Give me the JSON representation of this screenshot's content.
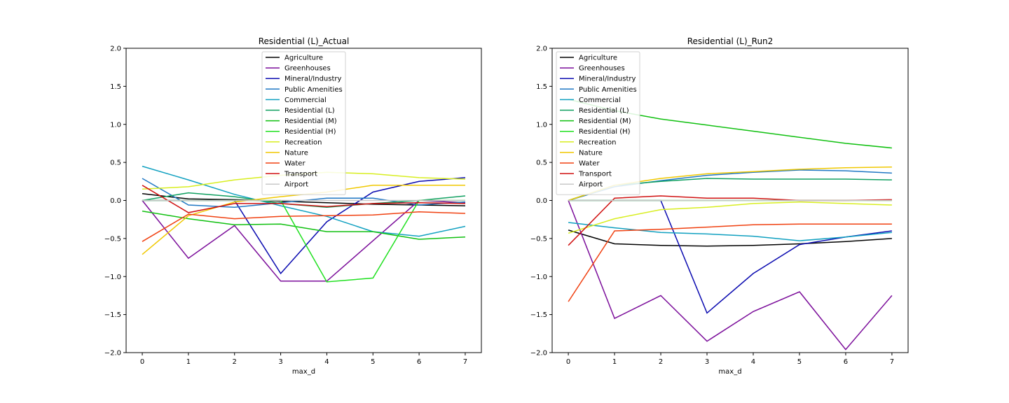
{
  "colors": {
    "Agriculture": "#000000",
    "Greenhouses": "#7b0d9a",
    "Mineral/Industry": "#0a0ab0",
    "Public Amenities": "#1f77c4",
    "Commercial": "#10a0c0",
    "Residential (L)": "#10a060",
    "Residential (M)": "#10c010",
    "Residential (H)": "#20e020",
    "Recreation": "#d8ee20",
    "Nature": "#f0c800",
    "Water": "#f04010",
    "Transport": "#d01010",
    "Airport": "#c8c8c8"
  },
  "chart_data": [
    {
      "type": "line",
      "title": "Residential (L)_Actual",
      "xlabel": "max_d",
      "ylabel": "",
      "x": [
        0,
        1,
        2,
        3,
        4,
        5,
        6,
        7
      ],
      "ylim": [
        -2.0,
        2.0
      ],
      "yticks": [
        "2.0",
        "1.5",
        "1.0",
        "0.5",
        "0.0",
        "−0.5",
        "−1.0",
        "−1.5",
        "−2.0"
      ],
      "ytick_values": [
        2.0,
        1.5,
        1.0,
        0.5,
        0.0,
        -0.5,
        -1.0,
        -1.5,
        -2.0
      ],
      "xticks": [
        "0",
        "1",
        "2",
        "3",
        "4",
        "5",
        "6",
        "7"
      ],
      "legend": "top-center",
      "series": [
        {
          "name": "Agriculture",
          "values": [
            0.09,
            0.02,
            0.01,
            -0.01,
            -0.03,
            -0.05,
            -0.06,
            -0.07
          ]
        },
        {
          "name": "Greenhouses",
          "values": [
            0.0,
            -0.76,
            -0.33,
            -1.06,
            -1.06,
            -0.53,
            0.0,
            -0.03
          ]
        },
        {
          "name": "Mineral/Industry",
          "values": [
            0.0,
            0.0,
            0.0,
            -0.96,
            -0.28,
            0.11,
            0.25,
            0.3
          ]
        },
        {
          "name": "Public Amenities",
          "values": [
            0.29,
            -0.06,
            -0.09,
            -0.03,
            0.03,
            0.03,
            -0.06,
            -0.02
          ]
        },
        {
          "name": "Commercial",
          "values": [
            0.45,
            0.27,
            0.08,
            -0.07,
            -0.21,
            -0.41,
            -0.47,
            -0.34
          ]
        },
        {
          "name": "Residential (L)",
          "values": [
            0.0,
            0.1,
            0.05,
            -0.04,
            -0.09,
            -0.04,
            0.0,
            0.06
          ]
        },
        {
          "name": "Residential (M)",
          "values": [
            -0.14,
            -0.24,
            -0.32,
            -0.31,
            -0.41,
            -0.41,
            -0.51,
            -0.48
          ]
        },
        {
          "name": "Residential (H)",
          "values": [
            0.0,
            0.0,
            0.0,
            0.0,
            -1.07,
            -1.02,
            0.0,
            0.0
          ]
        },
        {
          "name": "Recreation",
          "values": [
            0.15,
            0.18,
            0.27,
            0.33,
            0.37,
            0.35,
            0.3,
            0.28
          ]
        },
        {
          "name": "Nature",
          "values": [
            -0.71,
            -0.2,
            -0.02,
            0.05,
            0.11,
            0.2,
            0.2,
            0.2
          ]
        },
        {
          "name": "Water",
          "values": [
            -0.54,
            -0.18,
            -0.24,
            -0.21,
            -0.2,
            -0.19,
            -0.15,
            -0.17
          ]
        },
        {
          "name": "Transport",
          "values": [
            0.2,
            -0.16,
            -0.04,
            -0.04,
            -0.08,
            -0.04,
            -0.03,
            -0.04
          ]
        },
        {
          "name": "Airport",
          "values": [
            0.0,
            0.0,
            0.0,
            0.0,
            0.0,
            0.0,
            0.0,
            0.0
          ]
        }
      ]
    },
    {
      "type": "line",
      "title": "Residential (L)_Run2",
      "xlabel": "max_d",
      "ylabel": "",
      "x": [
        0,
        1,
        2,
        3,
        4,
        5,
        6,
        7
      ],
      "ylim": [
        -2.0,
        2.0
      ],
      "yticks": [
        "2.0",
        "1.5",
        "1.0",
        "0.5",
        "0.0",
        "−0.5",
        "−1.0",
        "−1.5",
        "−2.0"
      ],
      "ytick_values": [
        2.0,
        1.5,
        1.0,
        0.5,
        0.0,
        -0.5,
        -1.0,
        -1.5,
        -2.0
      ],
      "xticks": [
        "0",
        "1",
        "2",
        "3",
        "4",
        "5",
        "6",
        "7"
      ],
      "legend": "top-left",
      "series": [
        {
          "name": "Agriculture",
          "values": [
            -0.39,
            -0.57,
            -0.59,
            -0.6,
            -0.59,
            -0.57,
            -0.54,
            -0.5
          ]
        },
        {
          "name": "Greenhouses",
          "values": [
            0.0,
            -1.55,
            -1.25,
            -1.85,
            -1.46,
            -1.2,
            -1.96,
            -1.25
          ]
        },
        {
          "name": "Mineral/Industry",
          "values": [
            0.0,
            0.0,
            0.0,
            -1.48,
            -0.96,
            -0.58,
            -0.48,
            -0.4
          ]
        },
        {
          "name": "Public Amenities",
          "values": [
            0.0,
            0.18,
            0.26,
            0.33,
            0.37,
            0.4,
            0.39,
            0.36
          ]
        },
        {
          "name": "Commercial",
          "values": [
            -0.29,
            -0.36,
            -0.42,
            -0.44,
            -0.47,
            -0.53,
            -0.48,
            -0.42
          ]
        },
        {
          "name": "Residential (L)",
          "values": [
            0.0,
            0.2,
            0.25,
            0.29,
            0.28,
            0.28,
            0.28,
            0.27
          ]
        },
        {
          "name": "Residential (M)",
          "values": [
            1.33,
            1.18,
            1.07,
            0.99,
            0.91,
            0.83,
            0.75,
            0.69
          ]
        },
        {
          "name": "Residential (H)",
          "values": [
            0.0,
            0.0,
            0.0,
            0.0,
            0.0,
            0.0,
            0.0,
            0.0
          ]
        },
        {
          "name": "Recreation",
          "values": [
            -0.43,
            -0.24,
            -0.12,
            -0.09,
            -0.04,
            -0.02,
            -0.04,
            -0.06
          ]
        },
        {
          "name": "Nature",
          "values": [
            0.0,
            0.2,
            0.29,
            0.35,
            0.38,
            0.41,
            0.43,
            0.44
          ]
        },
        {
          "name": "Water",
          "values": [
            -1.33,
            -0.4,
            -0.38,
            -0.35,
            -0.32,
            -0.31,
            -0.31,
            -0.31
          ]
        },
        {
          "name": "Transport",
          "values": [
            -0.59,
            0.03,
            0.06,
            0.03,
            0.03,
            0.0,
            0.0,
            0.01
          ]
        },
        {
          "name": "Airport",
          "values": [
            0.0,
            0.0,
            0.0,
            0.0,
            0.0,
            0.0,
            0.0,
            0.0
          ]
        }
      ]
    }
  ]
}
